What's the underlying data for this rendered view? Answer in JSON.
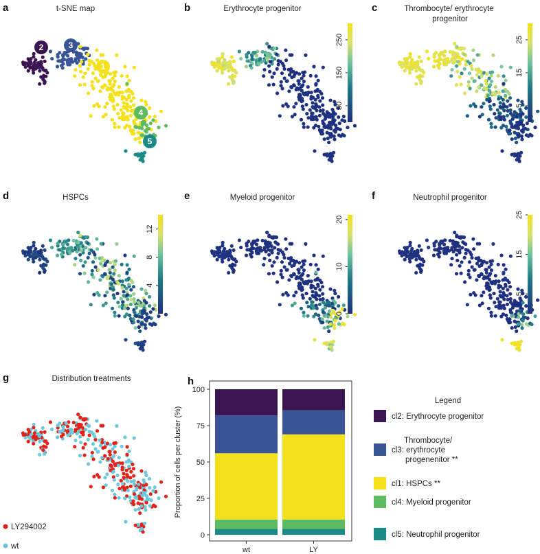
{
  "panels": [
    {
      "label": "a",
      "title": "t-SNE map"
    },
    {
      "label": "b",
      "title": "Erythrocyte progenitor"
    },
    {
      "label": "c",
      "title": "Thrombocyte/ erythrocyte\nprogenitor"
    },
    {
      "label": "d",
      "title": "HSPCs"
    },
    {
      "label": "e",
      "title": "Myeloid progenitor"
    },
    {
      "label": "f",
      "title": "Neutrophil progenitor"
    },
    {
      "label": "g",
      "title": "Distribution treatments"
    },
    {
      "label": "h",
      "title": ""
    }
  ],
  "colors": {
    "cl1": "#f5e11b",
    "cl2": "#3b1452",
    "cl3": "#3a5597",
    "cl4": "#5dbb62",
    "cl5": "#1a8a86",
    "low": "#1f2f80",
    "ly": "#e2231a",
    "wt": "#6fc7dc"
  },
  "cluster_labels": [
    "1",
    "2",
    "3",
    "4",
    "5"
  ],
  "chart_data": [
    {
      "type": "scatter",
      "panel": "b",
      "colorbar_ticks": [
        "250",
        "150",
        "50"
      ],
      "colorbar_range": [
        0,
        300
      ]
    },
    {
      "type": "scatter",
      "panel": "c",
      "colorbar_ticks": [
        "25",
        "15",
        "5"
      ],
      "colorbar_range": [
        0,
        30
      ]
    },
    {
      "type": "scatter",
      "panel": "d",
      "colorbar_ticks": [
        "12",
        "8",
        "4"
      ],
      "colorbar_range": [
        0,
        14
      ]
    },
    {
      "type": "scatter",
      "panel": "e",
      "colorbar_ticks": [
        "20",
        "10",
        "0"
      ],
      "colorbar_range": [
        0,
        21
      ]
    },
    {
      "type": "scatter",
      "panel": "f",
      "colorbar_ticks": [
        "25",
        "15",
        "5"
      ],
      "colorbar_range": [
        0,
        25
      ]
    },
    {
      "type": "scatter",
      "panel": "g",
      "legend": [
        {
          "name": "LY294002",
          "color": "#e2231a"
        },
        {
          "name": "wt",
          "color": "#6fc7dc"
        }
      ]
    },
    {
      "type": "bar",
      "panel": "h",
      "stacked": true,
      "categories": [
        "wt",
        "LY"
      ],
      "ylabel": "Proportion of cells per cluster (%)",
      "ylim": [
        0,
        100
      ],
      "yticks": [
        "0",
        "25",
        "50",
        "75",
        "100"
      ],
      "series": [
        {
          "key": "cl5",
          "name": "cl5: Neutrophil progenitor",
          "values": [
            4,
            4
          ],
          "color": "#1a8a86"
        },
        {
          "key": "cl4",
          "name": "cl4: Myeloid progenitor",
          "values": [
            6.5,
            6.5
          ],
          "color": "#5dbb62"
        },
        {
          "key": "cl1",
          "name": "cl1: HSPCs **",
          "values": [
            45.5,
            58.5
          ],
          "color": "#f5e11b"
        },
        {
          "key": "cl3",
          "name": "Thrombocyte/\ncl3: erythrocyte\nprogenenitor **",
          "values": [
            26,
            16.5
          ],
          "color": "#3a5597"
        },
        {
          "key": "cl2",
          "name": "cl2: Erythrocyte progenitor",
          "values": [
            18,
            14.5
          ],
          "color": "#3b1452"
        }
      ],
      "legend_title": "Legend"
    }
  ]
}
